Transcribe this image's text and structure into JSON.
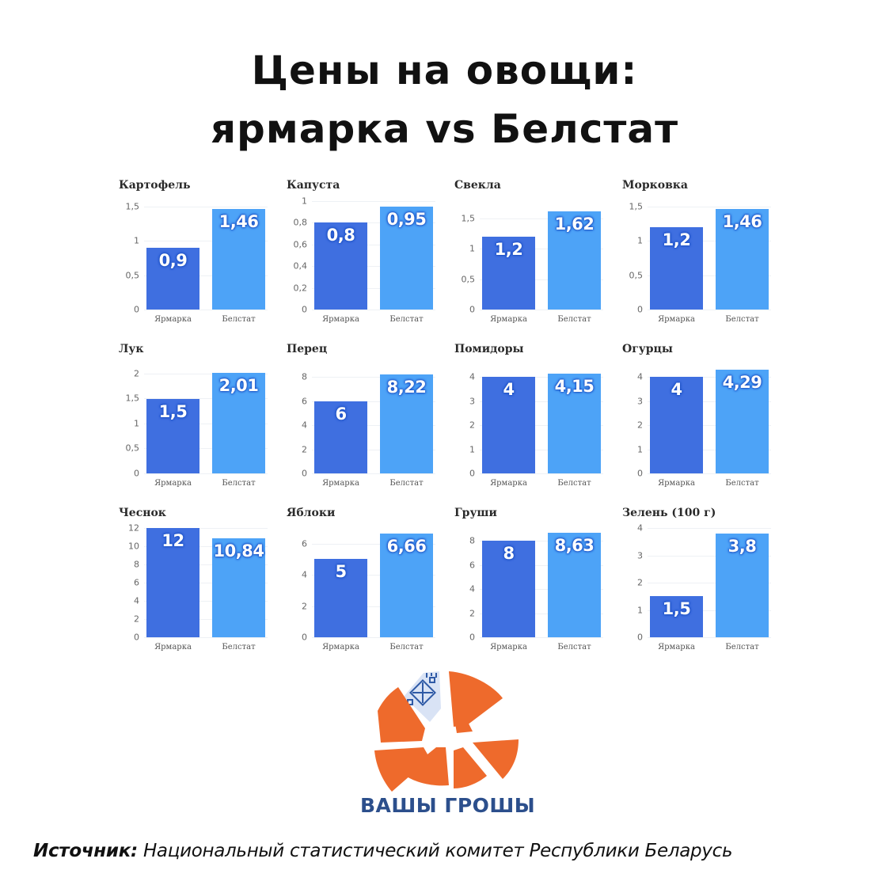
{
  "title": {
    "line1": "Цены на овощи:",
    "line2": "ярмарка vs Белстат"
  },
  "colors": {
    "fair_bar": "#3f6fe0",
    "belstat_bar": "#4da3f7",
    "logo_orange": "#ee6a2c",
    "logo_text": "#2c4f8c"
  },
  "categories": [
    "Ярмарка",
    "Белстат"
  ],
  "chart_data": [
    {
      "type": "bar",
      "title": "Картофель",
      "categories": [
        "Ярмарка",
        "Белстат"
      ],
      "values": [
        0.9,
        1.46
      ],
      "value_labels": [
        "0,9",
        "1,46"
      ],
      "yticks": [
        "0",
        "0,5",
        "1",
        "1,5"
      ],
      "ytick_values": [
        0,
        0.5,
        1,
        1.5
      ],
      "ylim": [
        0,
        1.5
      ],
      "grid": true
    },
    {
      "type": "bar",
      "title": "Капуста",
      "categories": [
        "Ярмарка",
        "Белстат"
      ],
      "values": [
        0.8,
        0.95
      ],
      "value_labels": [
        "0,8",
        "0,95"
      ],
      "yticks": [
        "0",
        "0,2",
        "0,4",
        "0,6",
        "0,8",
        "1"
      ],
      "ytick_values": [
        0,
        0.2,
        0.4,
        0.6,
        0.8,
        1
      ],
      "ylim": [
        0,
        1
      ],
      "grid": true
    },
    {
      "type": "bar",
      "title": "Свекла",
      "categories": [
        "Ярмарка",
        "Белстат"
      ],
      "values": [
        1.2,
        1.62
      ],
      "value_labels": [
        "1,2",
        "1,62"
      ],
      "yticks": [
        "0",
        "0,5",
        "1",
        "1,5"
      ],
      "ytick_values": [
        0,
        0.5,
        1,
        1.5
      ],
      "ylim": [
        0,
        1.7
      ],
      "grid": true
    },
    {
      "type": "bar",
      "title": "Морковка",
      "categories": [
        "Ярмарка",
        "Белстат"
      ],
      "values": [
        1.2,
        1.46
      ],
      "value_labels": [
        "1,2",
        "1,46"
      ],
      "yticks": [
        "0",
        "0,5",
        "1",
        "1,5"
      ],
      "ytick_values": [
        0,
        0.5,
        1,
        1.5
      ],
      "ylim": [
        0,
        1.5
      ],
      "grid": true
    },
    {
      "type": "bar",
      "title": "Лук",
      "categories": [
        "Ярмарка",
        "Белстат"
      ],
      "values": [
        1.5,
        2.01
      ],
      "value_labels": [
        "1,5",
        "2,01"
      ],
      "yticks": [
        "0",
        "0,5",
        "1",
        "1,5",
        "2"
      ],
      "ytick_values": [
        0,
        0.5,
        1,
        1.5,
        2
      ],
      "ylim": [
        0,
        2
      ],
      "grid": true
    },
    {
      "type": "bar",
      "title": "Перец",
      "categories": [
        "Ярмарка",
        "Белстат"
      ],
      "values": [
        6,
        8.22
      ],
      "value_labels": [
        "6",
        "8,22"
      ],
      "yticks": [
        "0",
        "2",
        "4",
        "6",
        "8"
      ],
      "ytick_values": [
        0,
        2,
        4,
        6,
        8
      ],
      "ylim": [
        0,
        8.6
      ],
      "grid": true
    },
    {
      "type": "bar",
      "title": "Помидоры",
      "categories": [
        "Ярмарка",
        "Белстат"
      ],
      "values": [
        4,
        4.15
      ],
      "value_labels": [
        "4",
        "4,15"
      ],
      "yticks": [
        "0",
        "1",
        "2",
        "3",
        "4"
      ],
      "ytick_values": [
        0,
        1,
        2,
        3,
        4
      ],
      "ylim": [
        0,
        4.3
      ],
      "grid": true
    },
    {
      "type": "bar",
      "title": "Огурцы",
      "categories": [
        "Ярмарка",
        "Белстат"
      ],
      "values": [
        4,
        4.29
      ],
      "value_labels": [
        "4",
        "4,29"
      ],
      "yticks": [
        "0",
        "1",
        "2",
        "3",
        "4"
      ],
      "ytick_values": [
        0,
        1,
        2,
        3,
        4
      ],
      "ylim": [
        0,
        4.3
      ],
      "grid": true
    },
    {
      "type": "bar",
      "title": "Чеснок",
      "categories": [
        "Ярмарка",
        "Белстат"
      ],
      "values": [
        12,
        10.84
      ],
      "value_labels": [
        "12",
        "10,84"
      ],
      "yticks": [
        "0",
        "2",
        "4",
        "6",
        "8",
        "10",
        "12"
      ],
      "ytick_values": [
        0,
        2,
        4,
        6,
        8,
        10,
        12
      ],
      "ylim": [
        0,
        12
      ],
      "grid": true
    },
    {
      "type": "bar",
      "title": "Яблоки",
      "categories": [
        "Ярмарка",
        "Белстат"
      ],
      "values": [
        5,
        6.66
      ],
      "value_labels": [
        "5",
        "6,66"
      ],
      "yticks": [
        "0",
        "2",
        "4",
        "6"
      ],
      "ytick_values": [
        0,
        2,
        4,
        6
      ],
      "ylim": [
        0,
        7
      ],
      "grid": true
    },
    {
      "type": "bar",
      "title": "Груши",
      "categories": [
        "Ярмарка",
        "Белстат"
      ],
      "values": [
        8,
        8.63
      ],
      "value_labels": [
        "8",
        "8,63"
      ],
      "yticks": [
        "0",
        "2",
        "4",
        "6",
        "8"
      ],
      "ytick_values": [
        0,
        2,
        4,
        6,
        8
      ],
      "ylim": [
        0,
        9
      ],
      "grid": true
    },
    {
      "type": "bar",
      "title": "Зелень (100 г)",
      "categories": [
        "Ярмарка",
        "Белстат"
      ],
      "values": [
        1.5,
        3.8
      ],
      "value_labels": [
        "1,5",
        "3,8"
      ],
      "yticks": [
        "0",
        "1",
        "2",
        "3",
        "4"
      ],
      "ytick_values": [
        0,
        1,
        2,
        3,
        4
      ],
      "ylim": [
        0,
        4
      ],
      "grid": true
    }
  ],
  "layout": {
    "plot_max": [
      1.58,
      1.0,
      1.79,
      1.58,
      2.095,
      8.66,
      4.33,
      4.33,
      12,
      7.0,
      9.05,
      4
    ]
  },
  "logo": {
    "text": "ВАШЫ ГРОШЫ",
    "icon": "orange-segmented-circle-logo-icon"
  },
  "source": {
    "label": "Источник:",
    "text": "Национальный статистический комитет Республики Беларусь"
  }
}
